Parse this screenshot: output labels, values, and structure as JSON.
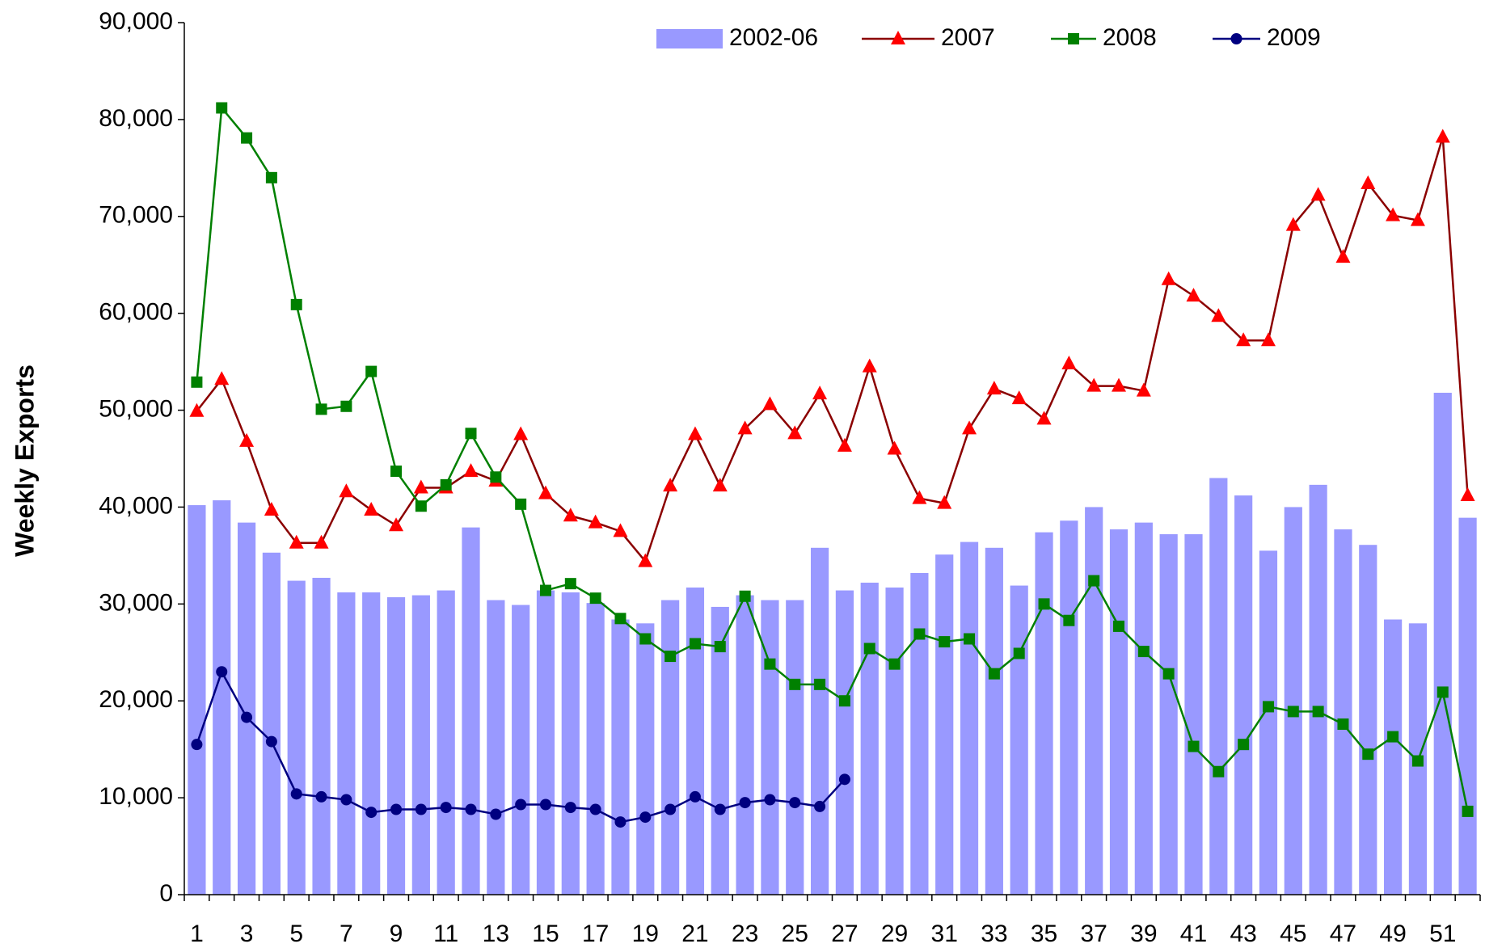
{
  "chart_data": {
    "type": "bar_line",
    "y_label": "Weekly Exports",
    "categories": [
      1,
      null,
      3,
      null,
      5,
      null,
      7,
      null,
      9,
      null,
      11,
      null,
      13,
      null,
      15,
      null,
      17,
      null,
      19,
      null,
      21,
      null,
      23,
      null,
      25,
      null,
      27,
      null,
      29,
      null,
      31,
      null,
      33,
      null,
      35,
      null,
      37,
      null,
      39,
      null,
      41,
      null,
      43,
      null,
      45,
      null,
      47,
      null,
      49,
      null,
      51,
      null
    ],
    "ylim": [
      0,
      90000
    ],
    "yticks": [
      0,
      {
        "value": 10000,
        "label": "10,000"
      },
      {
        "value": 20000,
        "label": "20,000"
      },
      {
        "value": 30000,
        "label": "30,000"
      },
      {
        "value": 40000,
        "label": "40,000"
      },
      {
        "value": 50000,
        "label": "50,000"
      },
      {
        "value": 60000,
        "label": "60,000"
      },
      {
        "value": 70000,
        "label": "70,000"
      },
      {
        "value": 80000,
        "label": "80,000"
      },
      {
        "value": 90000,
        "label": "90,000"
      }
    ],
    "grid": false,
    "legend": "top",
    "series": [
      {
        "name": "2002-06",
        "type": "bar",
        "color": "#9999ff",
        "values": [
          40200,
          40700,
          38400,
          35300,
          32400,
          32700,
          31200,
          31200,
          30700,
          30900,
          31400,
          37900,
          30400,
          29900,
          31400,
          31200,
          30100,
          28400,
          28000,
          30400,
          31700,
          29700,
          30900,
          30400,
          30400,
          35800,
          31400,
          32200,
          31700,
          33200,
          35100,
          36400,
          35800,
          31900,
          37400,
          38600,
          40000,
          37700,
          38400,
          37200,
          37200,
          43000,
          41200,
          35500,
          40000,
          42300,
          37700,
          36100,
          28400,
          28000,
          51800,
          38900
        ]
      },
      {
        "name": "2007",
        "type": "line",
        "marker": "triangle",
        "color": "#8b0000",
        "marker_color": "#ff0000",
        "values": [
          49900,
          53200,
          46800,
          39700,
          36300,
          36300,
          41600,
          39700,
          38100,
          42000,
          42000,
          43700,
          42700,
          47500,
          41400,
          39100,
          38400,
          37500,
          34400,
          42200,
          47500,
          42200,
          48100,
          50600,
          47600,
          51700,
          46300,
          54500,
          46000,
          40900,
          40400,
          48100,
          52200,
          51200,
          49100,
          54800,
          52500,
          52500,
          52000,
          63500,
          61800,
          59700,
          57200,
          57200,
          69100,
          72200,
          65800,
          73400,
          70100,
          69600,
          78200,
          41200
        ]
      },
      {
        "name": "2008",
        "type": "line",
        "marker": "square",
        "color": "#008000",
        "marker_color": "#008000",
        "values": [
          52900,
          81200,
          78100,
          74000,
          60900,
          50100,
          50400,
          54000,
          43700,
          40100,
          42300,
          47600,
          43100,
          40300,
          31400,
          32100,
          30600,
          28500,
          26400,
          24600,
          25900,
          25600,
          30800,
          23800,
          21700,
          21700,
          20000,
          25400,
          23800,
          26900,
          26100,
          26400,
          22800,
          24900,
          30000,
          28300,
          32400,
          27700,
          25100,
          22800,
          15300,
          12700,
          15500,
          19400,
          18900,
          18900,
          17600,
          14500,
          16300,
          13800,
          20900,
          8600
        ]
      },
      {
        "name": "2009",
        "type": "line",
        "marker": "circle",
        "color": "#000080",
        "marker_color": "#000080",
        "values": [
          15500,
          23000,
          18300,
          15800,
          10400,
          10100,
          9800,
          8500,
          8800,
          8800,
          9000,
          8800,
          8300,
          9300,
          9300,
          9000,
          8800,
          7500,
          8000,
          8800,
          10100,
          8800,
          9500,
          9800,
          9500,
          9100,
          11900,
          null,
          null,
          null,
          null,
          null,
          null,
          null,
          null,
          null,
          null,
          null,
          null,
          null,
          null,
          null,
          null,
          null,
          null,
          null,
          null,
          null,
          null,
          null,
          null,
          null
        ]
      }
    ]
  }
}
